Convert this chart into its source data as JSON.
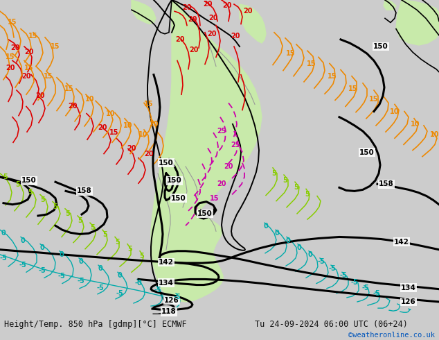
{
  "title_left": "Height/Temp. 850 hPa [gdmp][°C] ECMWF",
  "title_right": "Tu 24-09-2024 06:00 UTC (06+24)",
  "credit": "©weatheronline.co.uk",
  "bg_color": "#cccccc",
  "ocean_color": "#d8d8d8",
  "land_green": "#c8eaaa",
  "land_gray": "#b8b8b8",
  "bottom_bar_color": "#eeeeee",
  "bottom_text_color": "#111111",
  "credit_color": "#0055bb",
  "fig_width": 6.34,
  "fig_height": 4.9,
  "dpi": 100
}
